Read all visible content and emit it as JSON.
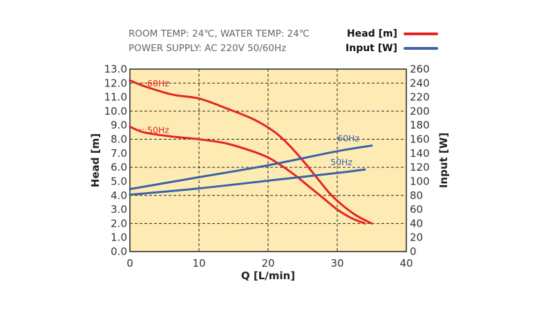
{
  "conditions": {
    "line1": "ROOM TEMP: 24℃, WATER TEMP: 24℃",
    "line2": "POWER SUPPLY: AC 220V 50/60Hz"
  },
  "legend": [
    {
      "label": "Head [m]",
      "color": "#e52421"
    },
    {
      "label": "Input [W]",
      "color": "#3a62a8"
    }
  ],
  "colors": {
    "head": "#e52421",
    "input": "#3a62a8",
    "plot_bg": "#fdebb3",
    "grid": "#222222"
  },
  "chart_data": {
    "type": "line",
    "xlabel": "Q [L/min]",
    "ylabel": "Head [m]",
    "y2label": "Input [W]",
    "xlim": [
      0,
      40
    ],
    "ylim": [
      0,
      13
    ],
    "y2lim": [
      0,
      260
    ],
    "x_ticks": [
      "0",
      "10",
      "20",
      "30",
      "40"
    ],
    "y_ticks": [
      "0.0",
      "1.0",
      "2.0",
      "3.0",
      "4.0",
      "5.0",
      "6.0",
      "7.0",
      "8.0",
      "9.0",
      "10.0",
      "11.0",
      "12.0",
      "13.0"
    ],
    "y2_ticks": [
      "0",
      "20",
      "40",
      "60",
      "80",
      "100",
      "120",
      "140",
      "160",
      "180",
      "200",
      "220",
      "240",
      "260"
    ],
    "grid": true,
    "series": [
      {
        "name": "60Hz",
        "measure": "Head",
        "axis": "left",
        "x": [
          0,
          2,
          6,
          10,
          14,
          18,
          21,
          23,
          25,
          27,
          29,
          31,
          33,
          35
        ],
        "y": [
          12.2,
          11.8,
          11.2,
          10.9,
          10.2,
          9.4,
          8.5,
          7.6,
          6.5,
          5.3,
          4.1,
          3.2,
          2.5,
          2.0
        ]
      },
      {
        "name": "50Hz",
        "measure": "Head",
        "axis": "left",
        "x": [
          0,
          2,
          6,
          10,
          14,
          18,
          20,
          22,
          24,
          26,
          28,
          30,
          32,
          34
        ],
        "y": [
          8.9,
          8.5,
          8.2,
          8.0,
          7.7,
          7.1,
          6.7,
          6.1,
          5.4,
          4.6,
          3.8,
          3.0,
          2.4,
          2.0
        ]
      },
      {
        "name": "60Hz",
        "measure": "Input",
        "axis": "right",
        "x": [
          0,
          10,
          20,
          30,
          35
        ],
        "y": [
          89,
          106,
          123,
          143,
          151
        ]
      },
      {
        "name": "50Hz",
        "measure": "Input",
        "axis": "right",
        "x": [
          0,
          10,
          20,
          30,
          34
        ],
        "y": [
          81,
          90,
          101,
          112,
          117
        ]
      }
    ],
    "annotations": [
      {
        "text": "60Hz",
        "series": 0
      },
      {
        "text": "50Hz",
        "series": 1
      },
      {
        "text": "60Hz",
        "series": 2
      },
      {
        "text": "50Hz",
        "series": 3
      }
    ]
  }
}
